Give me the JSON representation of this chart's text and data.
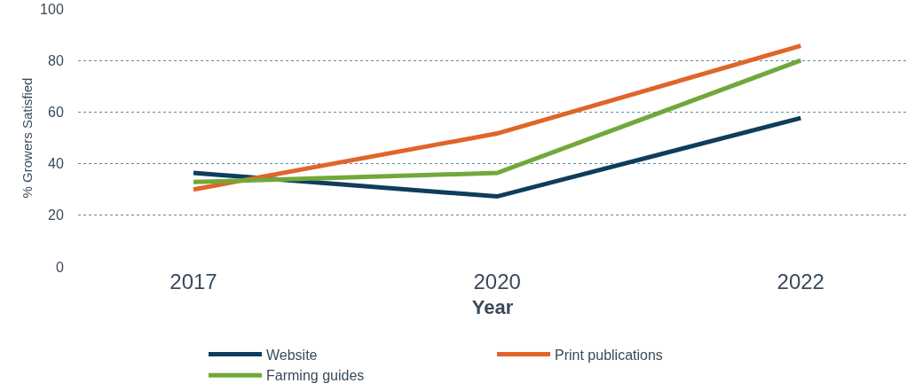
{
  "chart_data": {
    "type": "line",
    "xlabel": "Year",
    "ylabel": "% Growers Satisfied",
    "categories": [
      "2017",
      "2020",
      "2022"
    ],
    "series": [
      {
        "name": "Website",
        "color": "#0f3d5c",
        "values": [
          36.4,
          27.3,
          57.7
        ]
      },
      {
        "name": "Print publications",
        "color": "#e0652a",
        "values": [
          30,
          51.7,
          85.7
        ]
      },
      {
        "name": "Farming guides",
        "color": "#70a83b",
        "values": [
          32.9,
          36.4,
          80
        ]
      }
    ],
    "ylim": [
      0,
      100
    ],
    "yticks": [
      0,
      20,
      40,
      60,
      80,
      100
    ],
    "grid": "y",
    "legend": "bottom",
    "marker": "none",
    "line_style": "solid"
  }
}
